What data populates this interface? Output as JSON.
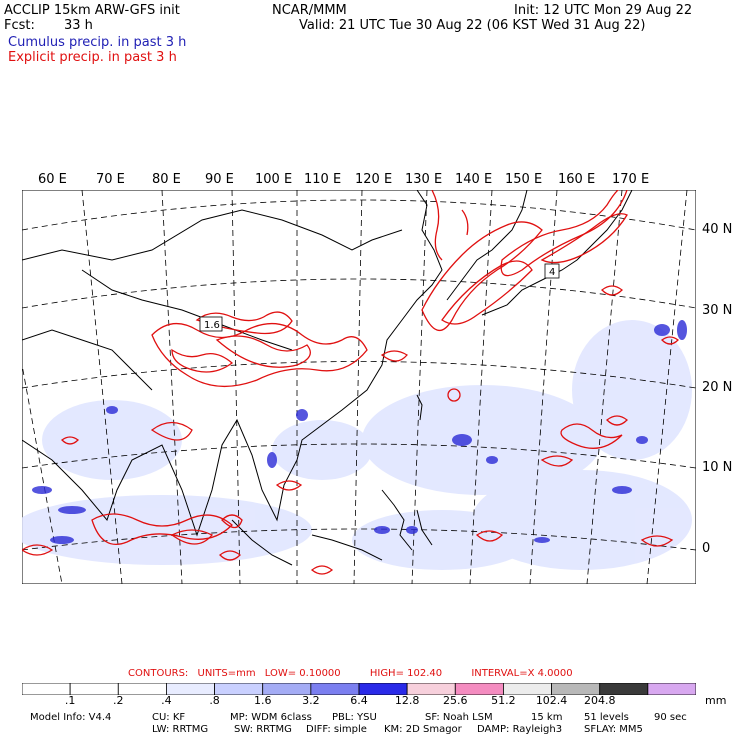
{
  "header": {
    "title_left": "ACCLIP 15km ARW-GFS init",
    "fcst_label": "Fcst:",
    "fcst_value": "33 h",
    "center": "NCAR/MMM",
    "init": "Init: 12 UTC Mon 29 Aug 22",
    "valid": "Valid: 21 UTC Tue 30 Aug 22 (06 KST Wed 31 Aug 22)",
    "cumulus_label": "Cumulus precip. in past 3 h",
    "explicit_label": "Explicit precip. in past 3 h"
  },
  "map": {
    "lon_labels": [
      "60 E",
      "70 E",
      "80 E",
      "90 E",
      "100 E",
      "110 E",
      "120 E",
      "130 E",
      "140 E",
      "150 E",
      "160 E",
      "170 E"
    ],
    "lat_labels": [
      "40 N",
      "30 N",
      "20 N",
      "10 N",
      "0"
    ],
    "contour_labels": [
      "1.6",
      "4"
    ],
    "colors": {
      "cumulus": "#2b2bd6",
      "explicit": "#e01010",
      "coast": "#000000",
      "grid": "#000000"
    }
  },
  "contours": {
    "label": "CONTOURS:",
    "units": "UNITS=mm",
    "low": "LOW= 0.10000",
    "high": "HIGH= 102.40",
    "interval": "INTERVAL=X 4.0000"
  },
  "colorbar": {
    "tick_labels": [
      ".1",
      ".2",
      ".4",
      ".8",
      "1.6",
      "3.2",
      "6.4",
      "12.8",
      "25.6",
      "51.2",
      "102.4",
      "204.8"
    ],
    "unit": "mm",
    "colors": [
      "#ffffff",
      "#ffffff",
      "#ffffff",
      "#e8ecff",
      "#c9d0ff",
      "#a4acf5",
      "#7b7ff0",
      "#2a2ae8",
      "#f7d0dc",
      "#f48cc0",
      "#ececec",
      "#b8b8b8",
      "#3a3a3a",
      "#d8a8f0"
    ]
  },
  "footer": {
    "line1": [
      "Model Info: V4.4",
      "CU: KF",
      "MP: WDM 6class",
      "PBL: YSU",
      "SF: Noah LSM",
      "15 km",
      "51 levels",
      "90 sec"
    ],
    "line2": [
      "LW: RRTMG",
      "SW: RRTMG",
      "DIFF: simple",
      "KM: 2D Smagor",
      "DAMP: Rayleigh3",
      "SFLAY: MM5"
    ]
  }
}
